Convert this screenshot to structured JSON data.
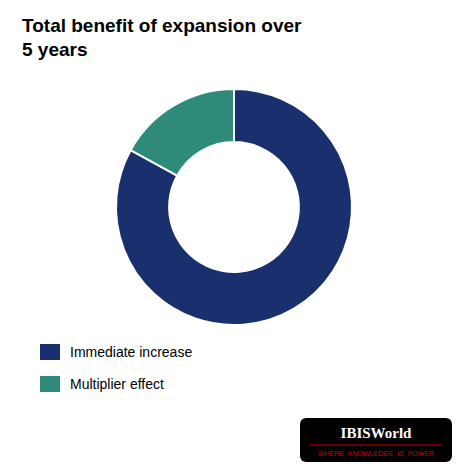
{
  "chart_data": {
    "type": "donut",
    "title": "Total benefit of expansion over\n5 years",
    "categories": [
      "Immediate increase",
      "Multiplier effect"
    ],
    "values": [
      83,
      17
    ],
    "colors": [
      "#1a2f6e",
      "#2e8b7a"
    ],
    "legend": "lower left",
    "annotations": [
      "IBISWorld",
      "WHERE  KNOWLEDGE  IS  POWER"
    ]
  }
}
